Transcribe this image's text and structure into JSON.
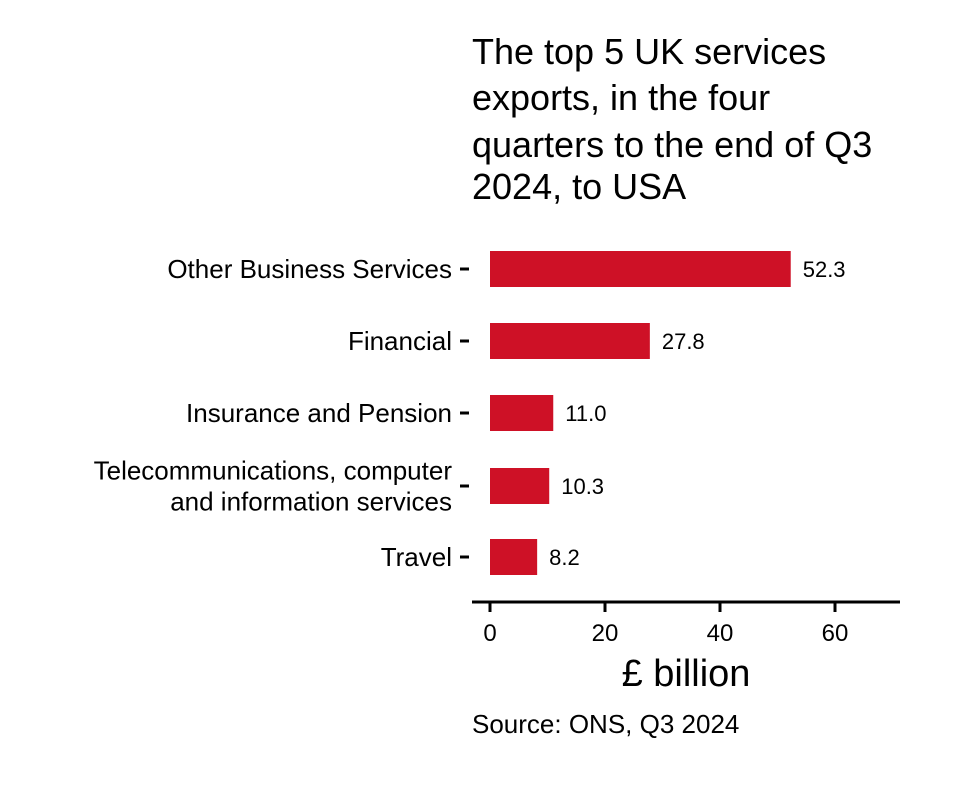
{
  "chart_data": {
    "type": "bar",
    "orientation": "horizontal",
    "title": "The top 5 UK services exports, in the four quarters to the end of Q3 2024, to USA",
    "title_lines": [
      "The top 5 UK services",
      "exports, in the four",
      "quarters to the end of Q3",
      "2024, to USA"
    ],
    "categories": [
      "Other Business Services",
      "Financial",
      "Insurance and Pension",
      "Telecommunications, computer and information services",
      "Travel"
    ],
    "category_lines": [
      [
        "Other Business Services"
      ],
      [
        "Financial"
      ],
      [
        "Insurance and Pension"
      ],
      [
        "Telecommunications, computer",
        "and information services"
      ],
      [
        "Travel"
      ]
    ],
    "values": [
      52.3,
      27.8,
      11.0,
      10.3,
      8.2
    ],
    "value_labels": [
      "52.3",
      "27.8",
      "11.0",
      "10.3",
      "8.2"
    ],
    "xlabel": "£ billion",
    "ylabel": "",
    "xlim": [
      0,
      70
    ],
    "xticks": [
      0,
      20,
      40,
      60
    ],
    "xtick_labels": [
      "0",
      "20",
      "40",
      "60"
    ],
    "grid": false,
    "legend": "none",
    "bar_color": "#CE1126",
    "source": "Source: ONS, Q3 2024"
  }
}
